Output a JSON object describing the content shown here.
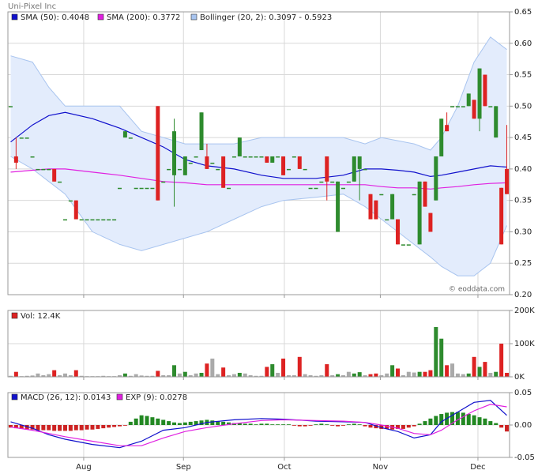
{
  "chart_data": [
    {
      "type": "candlestick",
      "title": "Uni-Pixel Inc",
      "annotation": "© eoddata.com",
      "up_color": "#2e8b2e",
      "down_color": "#dd2222",
      "grid": true,
      "xlim": [
        0.5,
        92.5
      ],
      "ylim": [
        0.2,
        0.65
      ],
      "yticks": [
        0.65,
        {
          "value": 0.6,
          "label": "0.60"
        },
        0.55,
        {
          "value": 0.5,
          "label": "0.50"
        },
        0.45,
        {
          "value": 0.4,
          "label": "0.40"
        },
        0.35,
        {
          "value": 0.3,
          "label": "0.30"
        },
        0.25,
        {
          "value": 0.2,
          "label": "0.20"
        }
      ],
      "xticks": [
        {
          "value": 14.4,
          "label": "Aug"
        },
        {
          "value": 32.7,
          "label": "Sep"
        },
        {
          "value": 51.2,
          "label": "Oct"
        },
        {
          "value": 68.8,
          "label": "Nov"
        },
        {
          "value": 86.7,
          "label": "Dec"
        }
      ],
      "x": [
        1,
        2,
        3,
        4,
        5,
        6,
        7,
        8,
        9,
        10,
        11,
        12,
        13,
        14,
        15,
        16,
        17,
        18,
        19,
        20,
        21,
        22,
        23,
        24,
        25,
        26,
        27,
        28,
        29,
        30,
        31,
        32,
        33,
        34,
        35,
        36,
        37,
        38,
        39,
        40,
        41,
        42,
        43,
        44,
        45,
        46,
        47,
        48,
        49,
        50,
        51,
        52,
        53,
        54,
        55,
        56,
        57,
        58,
        59,
        60,
        61,
        62,
        63,
        64,
        65,
        66,
        67,
        68,
        69,
        70,
        71,
        72,
        73,
        74,
        75,
        76,
        77,
        78,
        79,
        80,
        81,
        82,
        83,
        84,
        85,
        86,
        87,
        88,
        89,
        90,
        91,
        92
      ],
      "open": [
        0.5,
        0.42,
        0.45,
        0.45,
        0.42,
        0.4,
        0.4,
        0.4,
        0.4,
        0.38,
        0.32,
        0.35,
        0.35,
        0.32,
        0.32,
        0.32,
        0.32,
        0.32,
        0.32,
        0.32,
        0.37,
        0.45,
        0.45,
        0.37,
        0.37,
        0.37,
        0.37,
        0.5,
        0.38,
        0.4,
        0.39,
        0.4,
        0.39,
        0.41,
        0.42,
        0.43,
        0.42,
        0.41,
        0.4,
        0.42,
        0.37,
        0.42,
        0.42,
        0.42,
        0.42,
        0.42,
        0.42,
        0.42,
        0.41,
        0.42,
        0.42,
        0.4,
        0.42,
        0.42,
        0.4,
        0.37,
        0.37,
        0.38,
        0.42,
        0.38,
        0.3,
        0.37,
        0.38,
        0.38,
        0.4,
        0.4,
        0.36,
        0.35,
        0.36,
        0.32,
        0.32,
        0.32,
        0.28,
        0.28,
        0.36,
        0.28,
        0.38,
        0.33,
        0.35,
        0.42,
        0.47,
        0.5,
        0.5,
        0.5,
        0.5,
        0.51,
        0.48,
        0.55,
        0.5,
        0.45,
        0.37,
        0.4
      ],
      "high": [
        0.5,
        0.45,
        0.45,
        0.45,
        0.42,
        0.4,
        0.4,
        0.4,
        0.4,
        0.38,
        0.32,
        0.35,
        0.35,
        0.32,
        0.32,
        0.32,
        0.32,
        0.32,
        0.32,
        0.32,
        0.37,
        0.46,
        0.45,
        0.37,
        0.37,
        0.37,
        0.37,
        0.5,
        0.38,
        0.4,
        0.48,
        0.4,
        0.42,
        0.41,
        0.42,
        0.49,
        0.44,
        0.41,
        0.4,
        0.42,
        0.37,
        0.42,
        0.45,
        0.42,
        0.42,
        0.42,
        0.42,
        0.42,
        0.42,
        0.42,
        0.42,
        0.4,
        0.42,
        0.42,
        0.4,
        0.37,
        0.37,
        0.38,
        0.42,
        0.38,
        0.38,
        0.37,
        0.38,
        0.42,
        0.42,
        0.4,
        0.36,
        0.35,
        0.36,
        0.32,
        0.36,
        0.32,
        0.28,
        0.28,
        0.36,
        0.38,
        0.38,
        0.33,
        0.42,
        0.48,
        0.49,
        0.5,
        0.5,
        0.5,
        0.52,
        0.51,
        0.56,
        0.55,
        0.5,
        0.5,
        0.37,
        0.47
      ],
      "low": [
        0.5,
        0.4,
        0.45,
        0.45,
        0.42,
        0.4,
        0.4,
        0.4,
        0.38,
        0.38,
        0.32,
        0.35,
        0.32,
        0.32,
        0.32,
        0.32,
        0.32,
        0.32,
        0.32,
        0.32,
        0.37,
        0.45,
        0.45,
        0.37,
        0.37,
        0.37,
        0.37,
        0.35,
        0.38,
        0.4,
        0.34,
        0.4,
        0.39,
        0.41,
        0.42,
        0.43,
        0.4,
        0.41,
        0.4,
        0.37,
        0.37,
        0.42,
        0.42,
        0.42,
        0.42,
        0.42,
        0.42,
        0.41,
        0.41,
        0.42,
        0.39,
        0.4,
        0.42,
        0.4,
        0.4,
        0.37,
        0.37,
        0.38,
        0.35,
        0.38,
        0.3,
        0.37,
        0.38,
        0.38,
        0.35,
        0.4,
        0.32,
        0.32,
        0.36,
        0.32,
        0.32,
        0.28,
        0.28,
        0.28,
        0.36,
        0.28,
        0.34,
        0.3,
        0.35,
        0.42,
        0.46,
        0.5,
        0.5,
        0.5,
        0.5,
        0.48,
        0.46,
        0.5,
        0.5,
        0.45,
        0.28,
        0.36
      ],
      "close": [
        0.5,
        0.41,
        0.45,
        0.45,
        0.42,
        0.4,
        0.4,
        0.4,
        0.38,
        0.38,
        0.32,
        0.35,
        0.32,
        0.32,
        0.32,
        0.32,
        0.32,
        0.32,
        0.32,
        0.32,
        0.37,
        0.46,
        0.45,
        0.37,
        0.37,
        0.37,
        0.37,
        0.35,
        0.38,
        0.4,
        0.46,
        0.4,
        0.42,
        0.41,
        0.42,
        0.49,
        0.4,
        0.41,
        0.4,
        0.37,
        0.37,
        0.42,
        0.45,
        0.42,
        0.42,
        0.42,
        0.42,
        0.41,
        0.42,
        0.42,
        0.39,
        0.4,
        0.42,
        0.4,
        0.4,
        0.37,
        0.37,
        0.38,
        0.38,
        0.38,
        0.38,
        0.37,
        0.38,
        0.42,
        0.42,
        0.4,
        0.32,
        0.32,
        0.36,
        0.32,
        0.36,
        0.28,
        0.28,
        0.28,
        0.36,
        0.38,
        0.34,
        0.3,
        0.42,
        0.48,
        0.46,
        0.5,
        0.5,
        0.5,
        0.52,
        0.48,
        0.56,
        0.5,
        0.5,
        0.5,
        0.28,
        0.36
      ],
      "overlay": {
        "x": [
          1,
          5,
          8,
          11,
          16,
          21,
          25,
          29,
          33,
          37,
          42,
          47,
          51,
          57,
          62,
          66,
          69,
          72,
          75,
          78,
          80,
          83,
          86,
          89,
          92
        ],
        "series": [
          {
            "name": "SMA (50): 0.4048",
            "color": "#1010cc",
            "values": [
              0.443,
              0.47,
              0.485,
              0.49,
              0.48,
              0.465,
              0.45,
              0.435,
              0.415,
              0.405,
              0.4,
              0.39,
              0.385,
              0.385,
              0.39,
              0.4,
              0.4,
              0.398,
              0.395,
              0.388,
              0.39,
              0.395,
              0.4,
              0.405,
              0.403
            ]
          },
          {
            "name": "SMA (200): 0.3772",
            "color": "#e020e0",
            "values": [
              0.395,
              0.398,
              0.4,
              0.4,
              0.395,
              0.39,
              0.385,
              0.38,
              0.378,
              0.375,
              0.375,
              0.375,
              0.375,
              0.375,
              0.375,
              0.375,
              0.372,
              0.37,
              0.37,
              0.368,
              0.37,
              0.372,
              0.375,
              0.377,
              0.378
            ]
          }
        ],
        "band": {
          "name": "Bollinger (20, 2): 0.3097 - 0.5923",
          "color": "#a8c4ef",
          "fill": "#e3ecfc",
          "upper": [
            0.58,
            0.57,
            0.53,
            0.5,
            0.5,
            0.5,
            0.46,
            0.45,
            0.44,
            0.44,
            0.44,
            0.45,
            0.45,
            0.45,
            0.45,
            0.44,
            0.45,
            0.445,
            0.44,
            0.43,
            0.45,
            0.5,
            0.57,
            0.61,
            0.59
          ],
          "lower": [
            0.42,
            0.4,
            0.38,
            0.36,
            0.3,
            0.28,
            0.27,
            0.28,
            0.29,
            0.3,
            0.32,
            0.34,
            0.35,
            0.355,
            0.36,
            0.34,
            0.32,
            0.3,
            0.28,
            0.26,
            0.245,
            0.23,
            0.23,
            0.25,
            0.31
          ]
        }
      }
    },
    {
      "type": "bar",
      "legend": "Vol: 12.4K",
      "legend_color": "#dd2222",
      "flat_color": "#aaaaaa",
      "ylim": [
        0,
        200000
      ],
      "yticks": [
        {
          "value": 200000,
          "label": "200K"
        },
        {
          "value": 100000,
          "label": "100K"
        },
        {
          "value": 0,
          "label": "0K"
        }
      ],
      "values": [
        3000,
        15000,
        2000,
        3000,
        4000,
        10000,
        5000,
        8000,
        20000,
        5000,
        10000,
        5000,
        20000,
        3000,
        2000,
        2000,
        2000,
        3000,
        2000,
        2000,
        5000,
        10000,
        3000,
        8000,
        4000,
        3000,
        3000,
        18000,
        5000,
        5000,
        35000,
        10000,
        15000,
        5000,
        10000,
        12000,
        40000,
        55000,
        8000,
        28000,
        5000,
        8000,
        12000,
        10000,
        5000,
        3000,
        3000,
        30000,
        38000,
        12000,
        55000,
        5000,
        5000,
        60000,
        8000,
        5000,
        3000,
        5000,
        38000,
        5000,
        8000,
        5000,
        15000,
        10000,
        14000,
        5000,
        8000,
        10000,
        5000,
        10000,
        35000,
        25000,
        5000,
        15000,
        13000,
        15000,
        15000,
        20000,
        150000,
        115000,
        35000,
        40000,
        10000,
        8000,
        10000,
        60000,
        30000,
        45000,
        12000,
        15000,
        100000,
        12000
      ]
    },
    {
      "type": "line",
      "pos_color": "#228822",
      "neg_color": "#cc2222",
      "ylim": [
        -0.05,
        0.05
      ],
      "yticks": [
        0.05,
        {
          "value": 0,
          "label": "0.00"
        },
        -0.05
      ],
      "x": [
        1,
        5,
        8,
        11,
        16,
        21,
        25,
        29,
        33,
        37,
        42,
        47,
        51,
        57,
        62,
        66,
        69,
        72,
        75,
        78,
        80,
        83,
        86,
        89,
        92
      ],
      "series": [
        {
          "name": "MACD (26, 12): 0.0143",
          "color": "#1010cc",
          "values": [
            0.005,
            -0.005,
            -0.015,
            -0.022,
            -0.03,
            -0.035,
            -0.025,
            -0.008,
            -0.004,
            0.004,
            0.008,
            0.01,
            0.009,
            0.006,
            0.005,
            0.004,
            -0.004,
            -0.01,
            -0.02,
            -0.015,
            0.005,
            0.02,
            0.035,
            0.038,
            0.015
          ]
        },
        {
          "name": "EXP (9): 0.0278",
          "color": "#e020e0",
          "values": [
            -0.003,
            -0.008,
            -0.013,
            -0.018,
            -0.025,
            -0.032,
            -0.032,
            -0.02,
            -0.01,
            -0.004,
            0.002,
            0.007,
            0.008,
            0.007,
            0.006,
            0.004,
            0,
            -0.005,
            -0.013,
            -0.015,
            -0.008,
            0.008,
            0.022,
            0.032,
            0.028
          ]
        }
      ],
      "histogram": [
        -0.004,
        -0.005,
        -0.006,
        -0.007,
        -0.007,
        -0.008,
        -0.008,
        -0.008,
        -0.009,
        -0.009,
        -0.009,
        -0.009,
        -0.008,
        -0.008,
        -0.007,
        -0.007,
        -0.006,
        -0.005,
        -0.004,
        -0.003,
        -0.002,
        -0.001,
        0.005,
        0.01,
        0.015,
        0.014,
        0.012,
        0.01,
        0.008,
        0.006,
        0.004,
        0.003,
        0.004,
        0.005,
        0.006,
        0.007,
        0.008,
        0.007,
        0.006,
        0.005,
        0.004,
        0.003,
        0.003,
        0.002,
        0.002,
        0.001,
        0.002,
        0.002,
        0.001,
        0.001,
        0.001,
        0.001,
        -0.001,
        -0.002,
        -0.002,
        -0.001,
        0.001,
        0.002,
        0.001,
        -0.001,
        -0.002,
        -0.001,
        0.001,
        0.002,
        0.001,
        -0.002,
        -0.004,
        -0.005,
        -0.006,
        -0.006,
        -0.007,
        -0.006,
        -0.006,
        -0.004,
        -0.002,
        0.002,
        0.006,
        0.01,
        0.014,
        0.017,
        0.019,
        0.02,
        0.02,
        0.019,
        0.017,
        0.015,
        0.012,
        0.01,
        0.006,
        0.003,
        -0.004,
        -0.01
      ]
    }
  ]
}
